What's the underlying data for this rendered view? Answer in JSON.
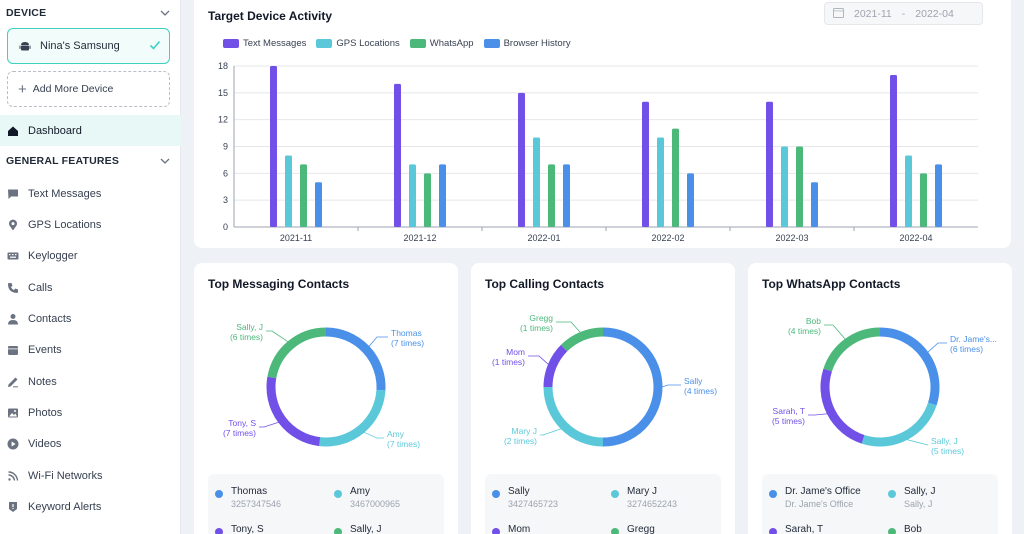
{
  "sidebar": {
    "device_header": "DEVICE",
    "device_name": "Nina's Samsung",
    "add_device_label": "Add More Device",
    "dashboard_label": "Dashboard",
    "features_header": "GENERAL FEATURES",
    "items": [
      {
        "label": "Text Messages",
        "icon": "message-icon"
      },
      {
        "label": "GPS Locations",
        "icon": "location-pin-icon"
      },
      {
        "label": "Keylogger",
        "icon": "keyboard-icon"
      },
      {
        "label": "Calls",
        "icon": "phone-icon"
      },
      {
        "label": "Contacts",
        "icon": "person-icon"
      },
      {
        "label": "Events",
        "icon": "calendar-icon"
      },
      {
        "label": "Notes",
        "icon": "pencil-icon"
      },
      {
        "label": "Photos",
        "icon": "image-icon"
      },
      {
        "label": "Videos",
        "icon": "play-icon"
      },
      {
        "label": "Wi-Fi Networks",
        "icon": "wifi-icon"
      },
      {
        "label": "Keyword Alerts",
        "icon": "alert-icon"
      }
    ]
  },
  "activity": {
    "title": "Target Device Activity",
    "date_from": "2021-11",
    "date_to": "2022-04",
    "date_sep": "-"
  },
  "colors": {
    "text_messages": "#7150e8",
    "gps": "#5bc8da",
    "whatsapp": "#4cb87a",
    "browser": "#4a90e8",
    "accent": "#3fd0c0"
  },
  "chart_data": [
    {
      "type": "bar",
      "title": "Target Device Activity",
      "categories": [
        "2021-11",
        "2021-12",
        "2022-01",
        "2022-02",
        "2022-03",
        "2022-04"
      ],
      "series": [
        {
          "name": "Text Messages",
          "values": [
            18,
            16,
            15,
            14,
            14,
            17
          ]
        },
        {
          "name": "GPS Locations",
          "values": [
            8,
            7,
            10,
            10,
            9,
            8
          ]
        },
        {
          "name": "WhatsApp",
          "values": [
            7,
            6,
            7,
            11,
            9,
            6
          ]
        },
        {
          "name": "Browser History",
          "values": [
            5,
            7,
            7,
            6,
            5,
            7
          ]
        }
      ],
      "ylim": [
        0,
        18
      ],
      "yticks": [
        "0",
        "3",
        "6",
        "9",
        "12",
        "15",
        "18"
      ],
      "grid": true,
      "legend": "top-left"
    },
    {
      "type": "pie",
      "title": "Top Messaging Contacts",
      "slices": [
        {
          "label": "Thomas",
          "value": 7,
          "text": "(7 times)"
        },
        {
          "label": "Amy",
          "value": 7,
          "text": "(7 times)"
        },
        {
          "label": "Tony, S",
          "value": 7,
          "text": "(7 times)"
        },
        {
          "label": "Sally, J",
          "value": 6,
          "text": "(6 times)"
        }
      ]
    },
    {
      "type": "pie",
      "title": "Top Calling Contacts",
      "slices": [
        {
          "label": "Sally",
          "value": 4,
          "text": "(4 times)"
        },
        {
          "label": "Mary J",
          "value": 2,
          "text": "(2 times)"
        },
        {
          "label": "Mom",
          "value": 1,
          "text": "(1 times)"
        },
        {
          "label": "Gregg",
          "value": 1,
          "text": "(1 times)"
        }
      ]
    },
    {
      "type": "pie",
      "title": "Top WhatsApp Contacts",
      "slices": [
        {
          "label": "Dr. Jame's...",
          "value": 6,
          "text": "(6 times)"
        },
        {
          "label": "Sally, J",
          "value": 5,
          "text": "(5 times)"
        },
        {
          "label": "Sarah, T",
          "value": 5,
          "text": "(5 times)"
        },
        {
          "label": "Bob",
          "value": 4,
          "text": "(4 times)"
        }
      ]
    }
  ],
  "contacts": {
    "messaging": [
      {
        "name": "Thomas",
        "detail": "3257347546"
      },
      {
        "name": "Amy",
        "detail": "3467000965"
      },
      {
        "name": "Tony, S",
        "detail": ""
      },
      {
        "name": "Sally, J",
        "detail": ""
      }
    ],
    "calling": [
      {
        "name": "Sally",
        "detail": "3427465723"
      },
      {
        "name": "Mary J",
        "detail": "3274652243"
      },
      {
        "name": "Mom",
        "detail": ""
      },
      {
        "name": "Gregg",
        "detail": ""
      }
    ],
    "whatsapp": [
      {
        "name": "Dr. Jame's Office",
        "detail": "Dr. Jame's Office"
      },
      {
        "name": "Sally, J",
        "detail": "Sally, J"
      },
      {
        "name": "Sarah, T",
        "detail": ""
      },
      {
        "name": "Bob",
        "detail": ""
      }
    ]
  }
}
